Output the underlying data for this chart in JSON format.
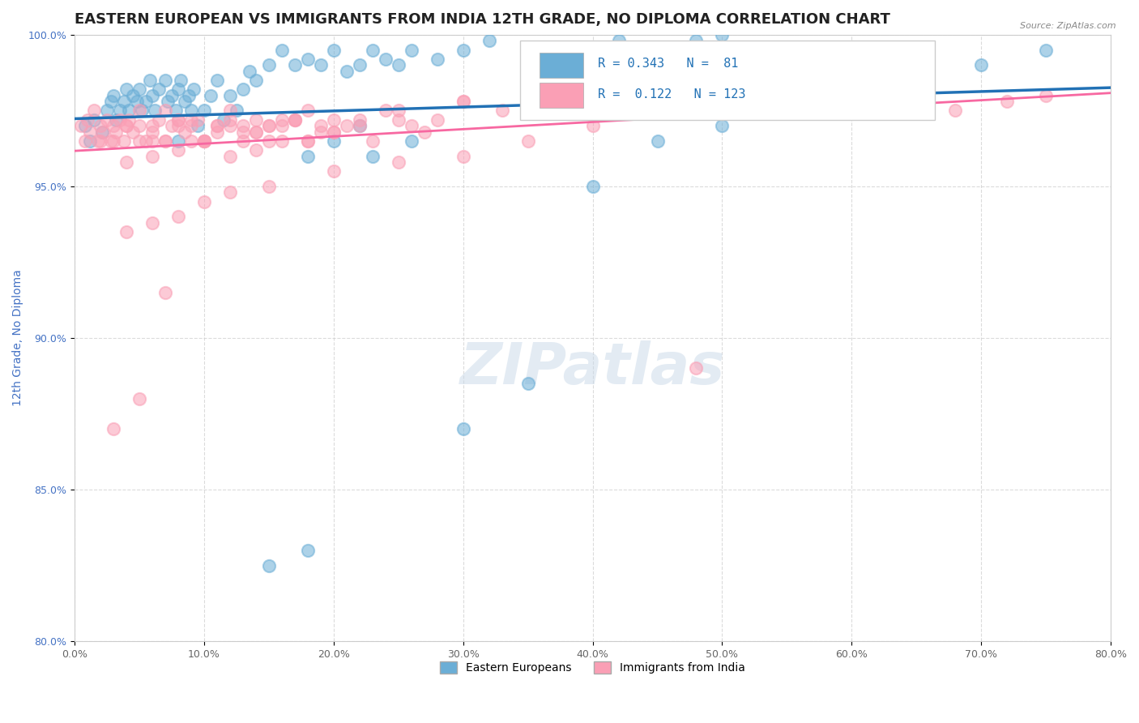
{
  "title": "EASTERN EUROPEAN VS IMMIGRANTS FROM INDIA 12TH GRADE, NO DIPLOMA CORRELATION CHART",
  "source_text": "Source: ZipAtlas.com",
  "xlabel": "",
  "ylabel": "12th Grade, No Diploma",
  "xlim": [
    0.0,
    80.0
  ],
  "ylim": [
    80.0,
    100.0
  ],
  "xticks": [
    0.0,
    10.0,
    20.0,
    30.0,
    40.0,
    50.0,
    60.0,
    70.0,
    80.0
  ],
  "yticks": [
    80.0,
    85.0,
    90.0,
    95.0,
    100.0
  ],
  "blue_R": 0.343,
  "blue_N": 81,
  "pink_R": 0.122,
  "pink_N": 123,
  "blue_color": "#6baed6",
  "pink_color": "#fa9fb5",
  "blue_line_color": "#2171b5",
  "pink_line_color": "#f768a1",
  "legend_label_blue": "Eastern Europeans",
  "legend_label_pink": "Immigrants from India",
  "background_color": "#ffffff",
  "watermark_text": "ZIPatlas",
  "watermark_color": "#c8d8e8",
  "title_fontsize": 13,
  "axis_label_fontsize": 10,
  "tick_fontsize": 9,
  "blue_scatter_x": [
    1.2,
    0.8,
    1.5,
    2.1,
    2.5,
    2.8,
    3.0,
    3.2,
    3.5,
    3.8,
    4.0,
    4.2,
    4.5,
    4.8,
    5.0,
    5.2,
    5.5,
    5.8,
    6.0,
    6.2,
    6.5,
    7.0,
    7.2,
    7.5,
    7.8,
    8.0,
    8.2,
    8.5,
    8.8,
    9.0,
    9.2,
    9.5,
    10.0,
    10.5,
    11.0,
    11.5,
    12.0,
    12.5,
    13.0,
    13.5,
    14.0,
    15.0,
    16.0,
    17.0,
    18.0,
    19.0,
    20.0,
    21.0,
    22.0,
    23.0,
    24.0,
    25.0,
    26.0,
    28.0,
    30.0,
    32.0,
    35.0,
    38.0,
    40.0,
    42.0,
    45.0,
    48.0,
    50.0,
    23.0,
    26.0,
    15.0,
    18.0,
    30.0,
    35.0,
    40.0,
    45.0,
    50.0,
    55.0,
    60.0,
    65.0,
    70.0,
    75.0,
    18.0,
    20.0,
    22.0,
    8.0
  ],
  "blue_scatter_y": [
    96.5,
    97.0,
    97.2,
    96.8,
    97.5,
    97.8,
    98.0,
    97.2,
    97.5,
    97.8,
    98.2,
    97.5,
    98.0,
    97.8,
    98.2,
    97.5,
    97.8,
    98.5,
    98.0,
    97.5,
    98.2,
    98.5,
    97.8,
    98.0,
    97.5,
    98.2,
    98.5,
    97.8,
    98.0,
    97.5,
    98.2,
    97.0,
    97.5,
    98.0,
    98.5,
    97.2,
    98.0,
    97.5,
    98.2,
    98.8,
    98.5,
    99.0,
    99.5,
    99.0,
    99.2,
    99.0,
    99.5,
    98.8,
    99.0,
    99.5,
    99.2,
    99.0,
    99.5,
    99.2,
    99.5,
    99.8,
    99.5,
    99.2,
    99.5,
    99.8,
    99.5,
    99.8,
    100.0,
    96.0,
    96.5,
    82.5,
    83.0,
    87.0,
    88.5,
    95.0,
    96.5,
    97.0,
    97.5,
    98.0,
    98.5,
    99.0,
    99.5,
    96.0,
    96.5,
    97.0,
    96.5
  ],
  "pink_scatter_x": [
    0.5,
    0.8,
    1.0,
    1.2,
    1.5,
    1.8,
    2.0,
    2.2,
    2.5,
    2.8,
    3.0,
    3.2,
    3.5,
    3.8,
    4.0,
    4.2,
    4.5,
    5.0,
    5.5,
    6.0,
    6.5,
    7.0,
    7.5,
    8.0,
    8.5,
    9.0,
    9.5,
    10.0,
    11.0,
    12.0,
    13.0,
    14.0,
    15.0,
    16.0,
    17.0,
    18.0,
    19.0,
    20.0,
    22.0,
    24.0,
    26.0,
    28.0,
    30.0,
    33.0,
    36.0,
    40.0,
    44.0,
    48.0,
    5.0,
    7.0,
    9.0,
    11.0,
    13.0,
    15.0,
    17.0,
    19.0,
    21.0,
    23.0,
    25.0,
    27.0,
    10.0,
    12.0,
    14.0,
    16.0,
    18.0,
    6.0,
    8.0,
    10.0,
    12.0,
    14.0,
    16.0,
    18.0,
    20.0,
    25.0,
    30.0,
    35.0,
    40.0,
    45.0,
    50.0,
    55.0,
    60.0,
    65.0,
    3.0,
    5.0,
    7.0,
    9.0,
    11.0,
    13.0,
    15.0,
    17.0,
    20.0,
    22.0,
    2.0,
    4.0,
    6.0,
    8.0,
    4.0,
    6.0,
    8.0,
    10.0,
    12.0,
    14.0,
    4.0,
    6.0,
    8.0,
    10.0,
    12.0,
    15.0,
    20.0,
    25.0,
    30.0,
    35.0,
    40.0,
    45.0,
    50.0,
    55.0,
    60.0,
    68.0,
    72.0,
    75.0,
    3.0,
    5.0,
    7.0
  ],
  "pink_scatter_y": [
    97.0,
    96.5,
    97.2,
    96.8,
    97.5,
    96.5,
    97.0,
    96.8,
    97.2,
    96.5,
    97.0,
    96.8,
    97.2,
    96.5,
    97.0,
    97.2,
    96.8,
    97.5,
    96.5,
    97.0,
    97.2,
    96.5,
    97.0,
    97.2,
    96.8,
    97.0,
    97.2,
    96.5,
    97.0,
    97.5,
    96.8,
    97.2,
    97.0,
    96.5,
    97.2,
    97.5,
    97.0,
    96.8,
    97.2,
    97.5,
    97.0,
    97.2,
    97.8,
    97.5,
    98.0,
    97.5,
    98.0,
    89.0,
    96.5,
    97.5,
    96.5,
    97.0,
    96.5,
    97.0,
    97.2,
    96.8,
    97.0,
    96.5,
    97.2,
    96.8,
    96.5,
    97.0,
    96.8,
    97.2,
    96.5,
    96.5,
    97.0,
    96.5,
    97.2,
    96.8,
    97.0,
    96.5,
    97.2,
    97.5,
    97.8,
    97.5,
    97.8,
    98.0,
    97.5,
    97.8,
    98.0,
    97.5,
    96.5,
    97.0,
    96.5,
    97.2,
    96.8,
    97.0,
    96.5,
    97.2,
    96.8,
    97.0,
    96.5,
    97.0,
    96.8,
    97.2,
    95.8,
    96.0,
    96.2,
    96.5,
    96.0,
    96.2,
    93.5,
    93.8,
    94.0,
    94.5,
    94.8,
    95.0,
    95.5,
    95.8,
    96.0,
    96.5,
    97.0,
    97.5,
    97.8,
    98.0,
    98.2,
    97.5,
    97.8,
    98.0,
    87.0,
    88.0,
    91.5
  ]
}
